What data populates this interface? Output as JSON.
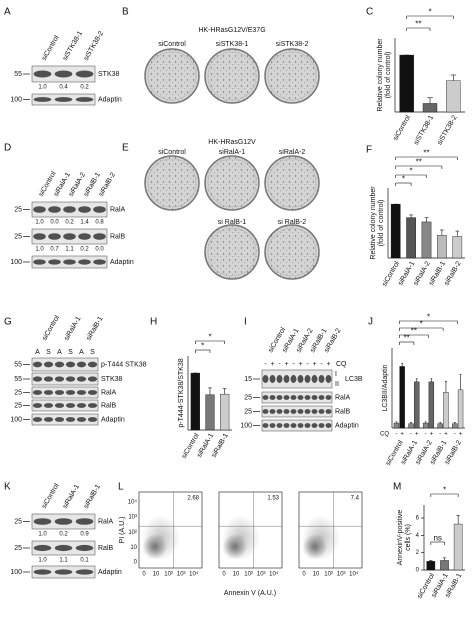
{
  "panels": {
    "A": {
      "letter": "A",
      "lanes": [
        "siControl",
        "siSTK38-1",
        "siSTK38-2"
      ],
      "markers": [
        "55",
        "100"
      ],
      "bands": [
        "STK38",
        "Adaptin"
      ],
      "quant": [
        [
          "1.0",
          "0.4",
          "0.2"
        ]
      ]
    },
    "B": {
      "letter": "B",
      "title": "HK-HRasG12V/E37G",
      "labels": [
        "siControl",
        "siSTK38-1",
        "siSTK38-2"
      ]
    },
    "D": {
      "letter": "D",
      "lanes": [
        "siControl",
        "siRalA-1",
        "siRalA-2",
        "siRalB-1",
        "siRalB-2"
      ],
      "markers": [
        "25",
        "25",
        "100"
      ],
      "bands": [
        "RalA",
        "RalB",
        "Adaptin"
      ],
      "quant": [
        [
          "1.0",
          "0.0",
          "0.2",
          "1.4",
          "0.8"
        ],
        [
          "1.0",
          "0.7",
          "1.1",
          "0.2",
          "0.0"
        ]
      ]
    },
    "E": {
      "letter": "E",
      "title": "HK-HRasG12V",
      "labels": [
        "siControl",
        "siRalA-1",
        "siRalA-2",
        "si RalB-1",
        "si RalB-2"
      ]
    },
    "G": {
      "letter": "G",
      "lanes": [
        "siControl",
        "siRalA-1",
        "siRalB-1"
      ],
      "fractions": [
        "A",
        "S",
        "A",
        "S",
        "A",
        "S"
      ],
      "markers": [
        "55",
        "55",
        "25",
        "25",
        "100"
      ],
      "bands": [
        "p-T444 STK38",
        "STK38",
        "RalA",
        "RalB",
        "Adaptin"
      ]
    },
    "I": {
      "letter": "I",
      "lanes": [
        "siControl",
        "siRalA-1",
        "siRalA-2",
        "siRalB-1",
        "siRalB-2"
      ],
      "cq_label": "CQ",
      "cq": [
        "-",
        "+",
        "-",
        "+",
        "-",
        "+",
        "-",
        "+",
        "-",
        "+"
      ],
      "markers": [
        "15",
        "25",
        "25",
        "100"
      ],
      "bands": [
        "LC3B",
        "RalA",
        "RalB",
        "Adaptin"
      ],
      "lc3_forms": [
        "I",
        "II"
      ]
    },
    "K": {
      "letter": "K",
      "lanes": [
        "siControl",
        "siRalA-1",
        "siRalB-1"
      ],
      "markers": [
        "25",
        "25",
        "100"
      ],
      "bands": [
        "RalA",
        "RalB",
        "Adaptin"
      ],
      "quant": [
        [
          "1.0",
          "0.2",
          "0.9"
        ],
        [
          "1.0",
          "1.1",
          "0.1"
        ]
      ]
    },
    "L": {
      "letter": "L",
      "ylabel": "PI (A.U.)",
      "xlabel": "Annexin V (A.U.)",
      "xticks": [
        "0",
        "10",
        "10²",
        "10³",
        "10⁴"
      ],
      "yticks": [
        "0",
        "10",
        "10²",
        "10³",
        "10⁴"
      ],
      "quadrant_values": [
        "2.68",
        "1.53",
        "7.4"
      ]
    }
  },
  "chart_data": [
    {
      "type": "bar",
      "letter": "C",
      "ylabel": [
        "Relative colony number",
        "(fold of control)"
      ],
      "categories": [
        "siControl",
        "siSTK38-1",
        "siSTK38-2"
      ],
      "series": [
        {
          "values": [
            1.0,
            0.15,
            0.55
          ],
          "errors": [
            0,
            0.1,
            0.1
          ],
          "colors": [
            "#111111",
            "#666666",
            "#cccccc"
          ]
        }
      ],
      "ylim": [
        0,
        1.3
      ],
      "significance": [
        "**",
        "*"
      ]
    },
    {
      "type": "bar",
      "letter": "F",
      "ylabel": [
        "Relative colony number",
        "(fold of control)"
      ],
      "categories": [
        "siControl",
        "siRalA-1",
        "siRalA-2",
        "siRalB-1",
        "siRalB-2"
      ],
      "series": [
        {
          "values": [
            1.0,
            0.75,
            0.67,
            0.42,
            0.4
          ],
          "errors": [
            0,
            0.05,
            0.08,
            0.1,
            0.1
          ],
          "colors": [
            "#111111",
            "#555555",
            "#888888",
            "#bbbbbb",
            "#cccccc"
          ]
        }
      ],
      "ylim": [
        0,
        1.3
      ],
      "significance": [
        "*",
        "*",
        "**",
        "**"
      ]
    },
    {
      "type": "bar",
      "letter": "H",
      "ylabel": [
        "p-T444-STK38/STK38"
      ],
      "categories": [
        "siControl",
        "siRalA-1",
        "siRalB-1"
      ],
      "series": [
        {
          "values": [
            1.0,
            0.62,
            0.63
          ],
          "errors": [
            0,
            0.12,
            0.1
          ],
          "colors": [
            "#111111",
            "#777777",
            "#cccccc"
          ]
        }
      ],
      "ylim": [
        0,
        1.3
      ],
      "significance": [
        "*",
        "*"
      ]
    },
    {
      "type": "bar",
      "letter": "J",
      "ylabel": [
        "LC3BII/Adaptin"
      ],
      "cq_label": "CQ",
      "categories": [
        "siControl",
        "siRalA-1",
        "siRalA-2",
        "siRalB-1",
        "siRalB-2"
      ],
      "series": [
        {
          "name": "-",
          "values": [
            0.08,
            0.07,
            0.08,
            0.07,
            0.07
          ],
          "errors": [
            0.02,
            0.02,
            0.02,
            0.02,
            0.02
          ],
          "colors": [
            "#888888",
            "#888888",
            "#888888",
            "#888888",
            "#888888"
          ]
        },
        {
          "name": "+",
          "values": [
            1.0,
            0.75,
            0.75,
            0.58,
            0.62
          ],
          "errors": [
            0.05,
            0.05,
            0.05,
            0.18,
            0.25
          ],
          "colors": [
            "#111111",
            "#666666",
            "#666666",
            "#cccccc",
            "#cccccc"
          ]
        }
      ],
      "ylim": [
        0,
        1.3
      ],
      "significance": [
        "**",
        "**",
        "*",
        "*"
      ]
    },
    {
      "type": "bar",
      "letter": "M",
      "ylabel": [
        "AnnexinV-positive",
        "cells (%)"
      ],
      "categories": [
        "siControl",
        "siRalA-1",
        "siRalB-1"
      ],
      "series": [
        {
          "values": [
            1.0,
            1.1,
            5.3
          ],
          "errors": [
            0.1,
            0.3,
            1.0
          ],
          "colors": [
            "#111111",
            "#777777",
            "#cccccc"
          ]
        }
      ],
      "ylim": [
        0,
        7.5
      ],
      "yticks": [
        0,
        2,
        4,
        6
      ],
      "significance": [
        "ns",
        "*"
      ]
    }
  ]
}
